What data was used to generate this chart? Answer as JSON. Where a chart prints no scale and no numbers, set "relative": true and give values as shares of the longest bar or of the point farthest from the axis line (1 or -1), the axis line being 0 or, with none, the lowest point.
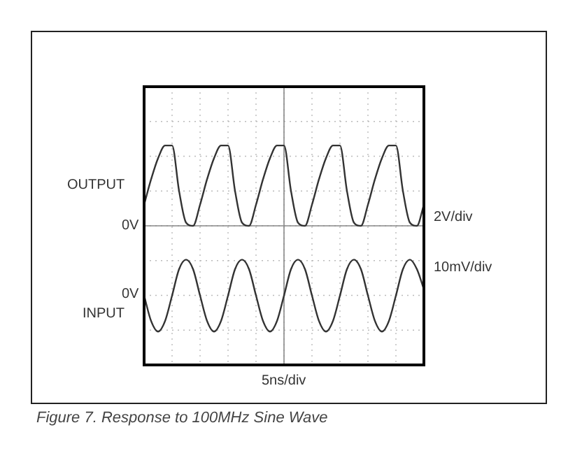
{
  "chart_data": {
    "type": "line",
    "relative": true,
    "grid": true,
    "legend": false,
    "tick_labels": false,
    "marker": "none",
    "line_style": "solid",
    "xlabel": "5ns/div",
    "categories": [
      null,
      null,
      null,
      null,
      null,
      null,
      null,
      null,
      null,
      null,
      null,
      null,
      null,
      null,
      null,
      null,
      null,
      null,
      null,
      null,
      null,
      null,
      null,
      null,
      null,
      null,
      null,
      null,
      null,
      null,
      null,
      null,
      null,
      null,
      null,
      null,
      null,
      null,
      null,
      null,
      null
    ],
    "series": [
      {
        "name": "OUTPUT",
        "color": "#333333",
        "values": [
          0.2,
          0.44,
          0.64,
          0.76,
          0.76,
          0.33,
          0.03,
          0,
          0.2,
          0.44,
          0.64,
          0.76,
          0.76,
          0.33,
          0.03,
          0,
          0.2,
          0.44,
          0.64,
          0.76,
          0.76,
          0.33,
          0.03,
          0,
          0.2,
          0.44,
          0.64,
          0.76,
          0.76,
          0.33,
          0.03,
          0,
          0.2,
          0.44,
          0.64,
          0.76,
          0.76,
          0.33,
          0.03,
          0,
          0.2
        ]
      },
      {
        "name": "INPUT",
        "color": "#333333",
        "values": [
          -0.66,
          -0.9,
          -1,
          -0.9,
          -0.66,
          -0.41,
          -0.32,
          -0.41,
          -0.66,
          -0.9,
          -1,
          -0.9,
          -0.66,
          -0.41,
          -0.32,
          -0.41,
          -0.66,
          -0.9,
          -1,
          -0.9,
          -0.66,
          -0.41,
          -0.32,
          -0.41,
          -0.66,
          -0.9,
          -1,
          -0.9,
          -0.66,
          -0.41,
          -0.32,
          -0.41,
          -0.66,
          -0.9,
          -1,
          -0.9,
          -0.66,
          -0.41,
          -0.32,
          -0.41,
          -0.6
        ]
      }
    ],
    "annotations": [
      "0V",
      "0V",
      "2V/div",
      "10mV/div",
      "Figure 7. Response to 100MHz Sine Wave"
    ]
  }
}
